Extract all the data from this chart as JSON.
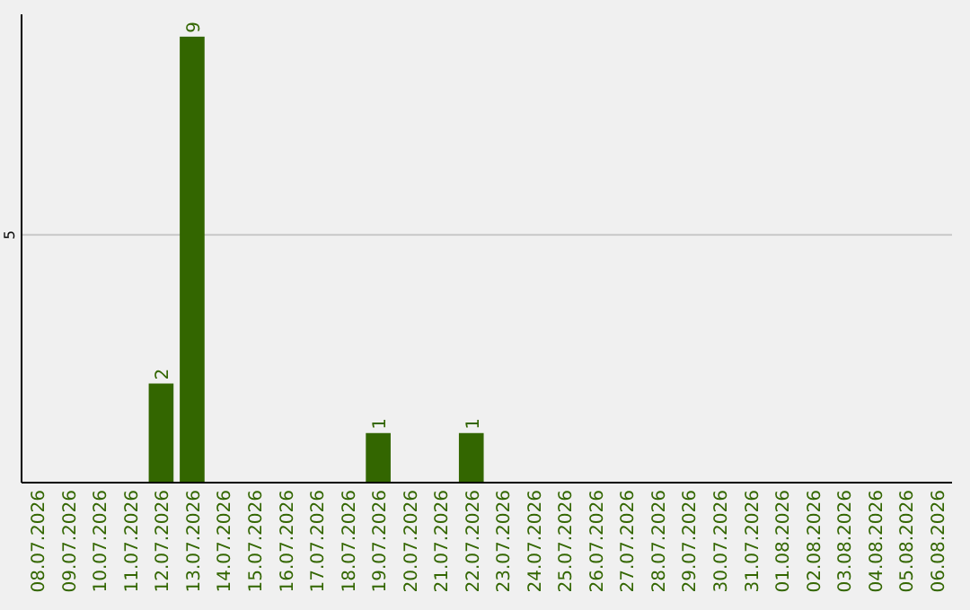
{
  "chart_data": {
    "type": "bar",
    "categories": [
      "08.07.2026",
      "09.07.2026",
      "10.07.2026",
      "11.07.2026",
      "12.07.2026",
      "13.07.2026",
      "14.07.2026",
      "15.07.2026",
      "16.07.2026",
      "17.07.2026",
      "18.07.2026",
      "19.07.2026",
      "20.07.2026",
      "21.07.2026",
      "22.07.2026",
      "23.07.2026",
      "24.07.2026",
      "25.07.2026",
      "26.07.2026",
      "27.07.2026",
      "28.07.2026",
      "29.07.2026",
      "30.07.2026",
      "31.07.2026",
      "01.08.2026",
      "02.08.2026",
      "03.08.2026",
      "04.08.2026",
      "05.08.2026",
      "06.08.2026"
    ],
    "values": [
      0,
      0,
      0,
      0,
      2,
      9,
      0,
      0,
      0,
      0,
      0,
      1,
      0,
      0,
      1,
      0,
      0,
      0,
      0,
      0,
      0,
      0,
      0,
      0,
      0,
      0,
      0,
      0,
      0,
      0
    ],
    "value_labels": [
      null,
      null,
      null,
      null,
      "2",
      "9",
      null,
      null,
      null,
      null,
      null,
      "1",
      null,
      null,
      "1",
      null,
      null,
      null,
      null,
      null,
      null,
      null,
      null,
      null,
      null,
      null,
      null,
      null,
      null,
      null
    ],
    "color": "#336600",
    "ylim": [
      0,
      9.45
    ],
    "yticks": [
      5
    ],
    "grid": "y"
  }
}
